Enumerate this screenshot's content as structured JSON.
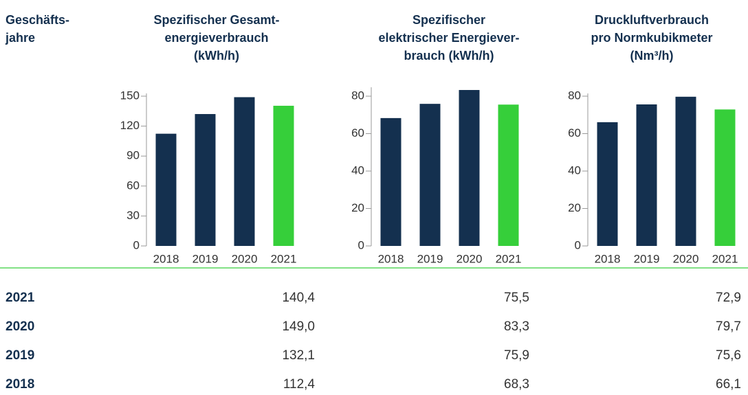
{
  "header": {
    "first": "Geschäfts-\njahre"
  },
  "chart_data": [
    {
      "type": "bar",
      "title": "Spezifischer Gesamt-\nenergieverbrauch\n(kWh/h)",
      "categories": [
        "2018",
        "2019",
        "2020",
        "2021"
      ],
      "values": [
        112.4,
        132.1,
        149.0,
        140.4
      ],
      "colors": [
        "#14304f",
        "#14304f",
        "#14304f",
        "#36cf3a"
      ],
      "ylim": [
        0,
        150
      ],
      "yticks": [
        0,
        30,
        60,
        90,
        120,
        150
      ]
    },
    {
      "type": "bar",
      "title": "Spezifischer\nelektrischer Energiever-\nbrauch (kWh/h)",
      "categories": [
        "2018",
        "2019",
        "2020",
        "2021"
      ],
      "values": [
        68.3,
        75.9,
        83.3,
        75.5
      ],
      "colors": [
        "#14304f",
        "#14304f",
        "#14304f",
        "#36cf3a"
      ],
      "ylim": [
        0,
        80
      ],
      "yticks": [
        0,
        20,
        40,
        60,
        80
      ]
    },
    {
      "type": "bar",
      "title": "Druckluftverbrauch\npro Normkubikmeter\n(Nm³/h)",
      "categories": [
        "2018",
        "2019",
        "2020",
        "2021"
      ],
      "values": [
        66.1,
        75.6,
        79.7,
        72.9
      ],
      "colors": [
        "#14304f",
        "#14304f",
        "#14304f",
        "#36cf3a"
      ],
      "ylim": [
        0,
        80
      ],
      "yticks": [
        0,
        20,
        40,
        60,
        80
      ]
    }
  ],
  "table": {
    "rows": [
      [
        "2021",
        "140,4",
        "75,5",
        "72,9"
      ],
      [
        "2020",
        "149,0",
        "83,3",
        "79,7"
      ],
      [
        "2019",
        "132,1",
        "75,9",
        "75,6"
      ],
      [
        "2018",
        "112,4",
        "68,3",
        "66,1"
      ]
    ]
  }
}
